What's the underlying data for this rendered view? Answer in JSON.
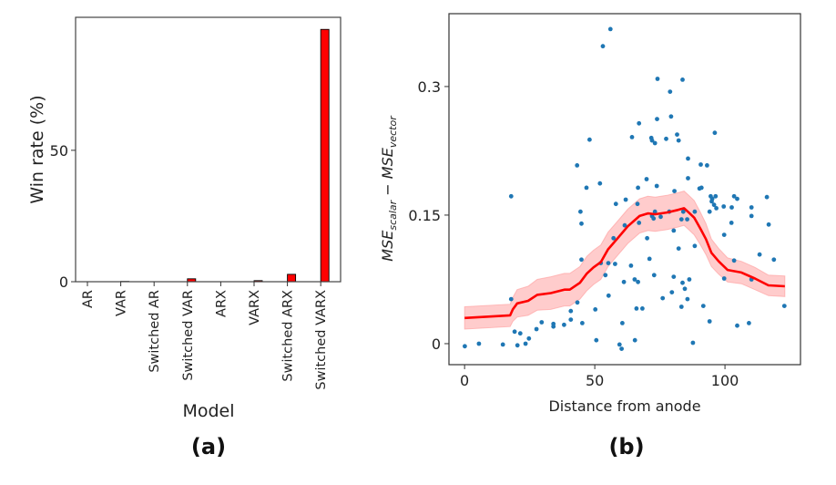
{
  "chart_data": [
    {
      "id": "a",
      "type": "bar",
      "panel_label": "(a)",
      "title": "",
      "xlabel": "Model",
      "ylabel": "Win rate (%)",
      "categories": [
        "AR",
        "VAR",
        "Switched AR",
        "Switched VAR",
        "ARX",
        "VARX",
        "Switched ARX",
        "Switched VARX"
      ],
      "values": [
        0.0,
        0.1,
        0.0,
        1.1,
        0.0,
        0.4,
        2.8,
        96.0
      ],
      "ylim": [
        0,
        100.6
      ],
      "yticks": [
        0,
        50
      ],
      "bar_color": "#ff0000",
      "bar_edge_color": "#000000",
      "grid": false,
      "legend": null
    },
    {
      "id": "b",
      "type": "scatter",
      "panel_label": "(b)",
      "title": "",
      "xlabel": "Distance from anode",
      "ylabel": {
        "base1": "MSE",
        "sub1": "scalar",
        "op": " − ",
        "base2": "MSE",
        "sub2": "vector"
      },
      "xlim": [
        -6,
        129
      ],
      "ylim": [
        -0.0245,
        0.385
      ],
      "xticks": [
        0,
        50,
        100
      ],
      "yticks": [
        0,
        0.15,
        0.3
      ],
      "ytick_labels": [
        "0",
        "0.15",
        "0.3"
      ],
      "grid": false,
      "legend": null,
      "point_color": "#1f77b4",
      "line_color": "#ff0000",
      "band_color": "#ff9999",
      "points": [
        [
          56.0,
          0.367
        ],
        [
          53.1,
          0.347
        ],
        [
          48.0,
          0.238
        ],
        [
          43.2,
          0.208
        ],
        [
          46.8,
          0.182
        ],
        [
          52.0,
          0.187
        ],
        [
          74.1,
          0.309
        ],
        [
          83.7,
          0.308
        ],
        [
          78.9,
          0.294
        ],
        [
          67.0,
          0.257
        ],
        [
          73.9,
          0.262
        ],
        [
          79.3,
          0.265
        ],
        [
          96.1,
          0.246
        ],
        [
          64.3,
          0.241
        ],
        [
          71.7,
          0.24
        ],
        [
          72.0,
          0.237
        ],
        [
          73.1,
          0.234
        ],
        [
          77.4,
          0.239
        ],
        [
          81.6,
          0.244
        ],
        [
          82.2,
          0.237
        ],
        [
          85.8,
          0.216
        ],
        [
          90.7,
          0.209
        ],
        [
          93.1,
          0.208
        ],
        [
          85.8,
          0.193
        ],
        [
          69.9,
          0.192
        ],
        [
          73.8,
          0.184
        ],
        [
          66.6,
          0.182
        ],
        [
          17.9,
          0.172
        ],
        [
          44.5,
          0.154
        ],
        [
          44.9,
          0.14
        ],
        [
          58.1,
          0.163
        ],
        [
          61.9,
          0.168
        ],
        [
          57.2,
          0.123
        ],
        [
          61.5,
          0.138
        ],
        [
          44.9,
          0.098
        ],
        [
          52.3,
          0.094
        ],
        [
          55.2,
          0.094
        ],
        [
          57.8,
          0.093
        ],
        [
          54.1,
          0.08
        ],
        [
          61.2,
          0.072
        ],
        [
          55.3,
          0.056
        ],
        [
          17.9,
          0.052
        ],
        [
          43.3,
          0.048
        ],
        [
          40.8,
          0.038
        ],
        [
          50.2,
          0.04
        ],
        [
          40.8,
          0.028
        ],
        [
          45.2,
          0.024
        ],
        [
          60.6,
          0.024
        ],
        [
          29.6,
          0.025
        ],
        [
          34.1,
          0.023
        ],
        [
          34.1,
          0.02
        ],
        [
          38.2,
          0.022
        ],
        [
          27.6,
          0.017
        ],
        [
          21.4,
          0.012
        ],
        [
          19.2,
          0.014
        ],
        [
          24.7,
          0.006
        ],
        [
          23.4,
          0.0
        ],
        [
          20.3,
          -0.002
        ],
        [
          14.7,
          -0.001
        ],
        [
          5.5,
          0.0
        ],
        [
          0.1,
          -0.003
        ],
        [
          50.6,
          0.004
        ],
        [
          59.5,
          -0.001
        ],
        [
          60.3,
          -0.006
        ],
        [
          80.6,
          0.178
        ],
        [
          90.2,
          0.181
        ],
        [
          91.0,
          0.182
        ],
        [
          94.5,
          0.172
        ],
        [
          94.9,
          0.166
        ],
        [
          103.5,
          0.172
        ],
        [
          104.7,
          0.169
        ],
        [
          116.1,
          0.171
        ],
        [
          95.8,
          0.162
        ],
        [
          96.7,
          0.158
        ],
        [
          102.6,
          0.159
        ],
        [
          110.2,
          0.159
        ],
        [
          94.1,
          0.154
        ],
        [
          110.2,
          0.149
        ],
        [
          102.5,
          0.141
        ],
        [
          116.8,
          0.139
        ],
        [
          66.4,
          0.163
        ],
        [
          73.1,
          0.154
        ],
        [
          78.6,
          0.154
        ],
        [
          72.0,
          0.149
        ],
        [
          84.0,
          0.154
        ],
        [
          88.4,
          0.154
        ],
        [
          83.3,
          0.145
        ],
        [
          85.5,
          0.145
        ],
        [
          67.0,
          0.141
        ],
        [
          80.3,
          0.132
        ],
        [
          70.1,
          0.123
        ],
        [
          99.7,
          0.127
        ],
        [
          82.2,
          0.111
        ],
        [
          88.4,
          0.114
        ],
        [
          113.3,
          0.104
        ],
        [
          118.8,
          0.098
        ],
        [
          63.9,
          0.091
        ],
        [
          71.0,
          0.099
        ],
        [
          103.5,
          0.097
        ],
        [
          72.8,
          0.08
        ],
        [
          80.3,
          0.078
        ],
        [
          86.3,
          0.075
        ],
        [
          65.3,
          0.075
        ],
        [
          66.6,
          0.072
        ],
        [
          99.7,
          0.076
        ],
        [
          83.7,
          0.071
        ],
        [
          110.2,
          0.075
        ],
        [
          79.6,
          0.06
        ],
        [
          84.6,
          0.064
        ],
        [
          76.1,
          0.053
        ],
        [
          85.6,
          0.052
        ],
        [
          83.3,
          0.043
        ],
        [
          91.7,
          0.044
        ],
        [
          122.8,
          0.044
        ],
        [
          66.0,
          0.041
        ],
        [
          68.3,
          0.041
        ],
        [
          94.1,
          0.026
        ],
        [
          104.7,
          0.021
        ],
        [
          109.2,
          0.024
        ],
        [
          65.4,
          0.004
        ],
        [
          87.7,
          0.001
        ],
        [
          72.6,
          0.146
        ],
        [
          75.3,
          0.148
        ],
        [
          96.4,
          0.172
        ],
        [
          95.1,
          0.169
        ],
        [
          99.5,
          0.16
        ]
      ],
      "trend_line": [
        [
          0,
          0.03
        ],
        [
          17.5,
          0.033
        ],
        [
          18.5,
          0.04
        ],
        [
          20.2,
          0.047
        ],
        [
          24.4,
          0.05
        ],
        [
          27.9,
          0.057
        ],
        [
          33.1,
          0.059
        ],
        [
          38.3,
          0.063
        ],
        [
          40.4,
          0.063
        ],
        [
          44.3,
          0.071
        ],
        [
          47.0,
          0.082
        ],
        [
          49.5,
          0.089
        ],
        [
          52.3,
          0.095
        ],
        [
          55.1,
          0.11
        ],
        [
          58.5,
          0.122
        ],
        [
          62.7,
          0.137
        ],
        [
          67.2,
          0.149
        ],
        [
          70.4,
          0.152
        ],
        [
          73.2,
          0.151
        ],
        [
          77.7,
          0.153
        ],
        [
          81.9,
          0.156
        ],
        [
          84.3,
          0.158
        ],
        [
          86.1,
          0.153
        ],
        [
          88.2,
          0.147
        ],
        [
          90.6,
          0.134
        ],
        [
          92.7,
          0.122
        ],
        [
          94.8,
          0.106
        ],
        [
          97.6,
          0.096
        ],
        [
          101.0,
          0.086
        ],
        [
          106.3,
          0.083
        ],
        [
          111.5,
          0.076
        ],
        [
          116.7,
          0.068
        ],
        [
          123.0,
          0.067
        ]
      ],
      "band_halfwidth": [
        0.013,
        0.013,
        0.014,
        0.016,
        0.017,
        0.018,
        0.019,
        0.019,
        0.019,
        0.019,
        0.02,
        0.02,
        0.02,
        0.02,
        0.02,
        0.02,
        0.02,
        0.02,
        0.02,
        0.02,
        0.02,
        0.02,
        0.02,
        0.02,
        0.019,
        0.018,
        0.016,
        0.015,
        0.014,
        0.013,
        0.013,
        0.012,
        0.012
      ]
    }
  ]
}
